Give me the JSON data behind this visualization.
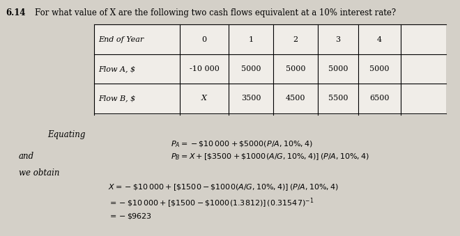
{
  "problem_number": "6.14",
  "question": "For what value of X are the following two cash flows equivalent at a 10% interest rate?",
  "table_headers": [
    "End of Year",
    "0",
    "1",
    "2",
    "3",
    "4"
  ],
  "row1_label": "Flow A, $",
  "row1_values": [
    "-10 000",
    "5000",
    "5000",
    "5000",
    "5000"
  ],
  "row2_label": "Flow B, $",
  "row2_values": [
    "X",
    "3500",
    "4500",
    "5500",
    "6500"
  ],
  "section1_label": "Equating",
  "section2_label": "and",
  "section3_label": "we obtain",
  "eq1": "$P_A = -\\$10\\,000 + \\$5000(P/A, 10\\%, 4)$",
  "eq2": "$P_B = X + [\\$3500 + \\$1000(A/G, 10\\%, 4)]\\,(P/A, 10\\%, 4)$",
  "eq3a": "$X = -\\$10\\,000 + [\\$1500 - \\$1000(A/G, 10\\%, 4)]\\,(P/A, 10\\%, 4)$",
  "eq3b": "$= -\\$10\\,000 + [\\$1500 - \\$1000(1.3812)]\\,(0.31547)^{-1}$",
  "eq3c": "$= -\\$9623$",
  "bg_color": "#d4d0c8",
  "text_color": "#000000"
}
